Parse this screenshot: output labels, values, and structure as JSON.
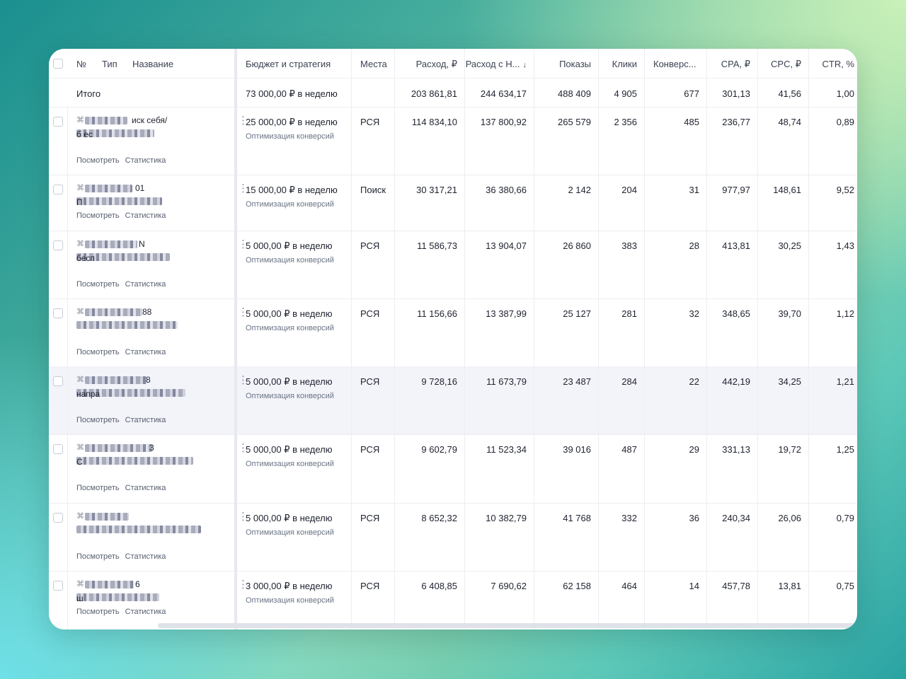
{
  "header": {
    "num": "№",
    "type": "Тип",
    "name": "Название",
    "budget": "Бюджет и стратегия",
    "places": "Места",
    "spend": "Расход, ₽",
    "spend_vat": "Расход с Н...",
    "sort_arrow": "↓",
    "impressions": "Показы",
    "clicks": "Клики",
    "conversions": "Конверс...",
    "cpa": "CPA, ₽",
    "cpc": "CPC, ₽",
    "ctr": "CTR, %"
  },
  "total": {
    "label": "Итого",
    "budget": "73 000,00 ₽ в неделю",
    "spend": "203 861,81",
    "spend_vat": "244 634,17",
    "impressions": "488 409",
    "clicks": "4 905",
    "conversions": "677",
    "cpa": "301,13",
    "cpc": "41,56",
    "ctr": "1,00"
  },
  "links": {
    "view": "Посмотреть",
    "stats": "Статистика"
  },
  "rows": [
    {
      "frag": "иск себя/",
      "frag2": "б  ес",
      "budget": "25 000,00 ₽ в неделю",
      "strategy": "Оптимизация конверсий",
      "places": "РСЯ",
      "spend": "114 834,10",
      "spend_vat": "137 800,92",
      "impressions": "265 579",
      "clicks": "2 356",
      "conversions": "485",
      "cpa": "236,77",
      "cpc": "48,74",
      "ctr": "0,89"
    },
    {
      "frag": "01",
      "frag2": "П",
      "budget": "15 000,00 ₽ в неделю",
      "strategy": "Оптимизация конверсий",
      "places": "Поиск",
      "spend": "30 317,21",
      "spend_vat": "36 380,66",
      "impressions": "2 142",
      "clicks": "204",
      "conversions": "31",
      "cpa": "977,97",
      "cpc": "148,61",
      "ctr": "9,52"
    },
    {
      "frag": "N",
      "frag2": "бесп",
      "budget": "5 000,00 ₽ в неделю",
      "strategy": "Оптимизация конверсий",
      "places": "РСЯ",
      "spend": "11 586,73",
      "spend_vat": "13 904,07",
      "impressions": "26 860",
      "clicks": "383",
      "conversions": "28",
      "cpa": "413,81",
      "cpc": "30,25",
      "ctr": "1,43"
    },
    {
      "frag": "88",
      "frag2": "",
      "budget": "5 000,00 ₽ в неделю",
      "strategy": "Оптимизация конверсий",
      "places": "РСЯ",
      "spend": "11 156,66",
      "spend_vat": "13 387,99",
      "impressions": "25 127",
      "clicks": "281",
      "conversions": "32",
      "cpa": "348,65",
      "cpc": "39,70",
      "ctr": "1,12"
    },
    {
      "frag": "8",
      "frag2": "напра",
      "budget": "5 000,00 ₽ в неделю",
      "strategy": "Оптимизация конверсий",
      "places": "РСЯ",
      "spend": "9 728,16",
      "spend_vat": "11 673,79",
      "impressions": "23 487",
      "clicks": "284",
      "conversions": "22",
      "cpa": "442,19",
      "cpc": "34,25",
      "ctr": "1,21"
    },
    {
      "frag": "3",
      "frag2": "С",
      "budget": "5 000,00 ₽ в неделю",
      "strategy": "Оптимизация конверсий",
      "places": "РСЯ",
      "spend": "9 602,79",
      "spend_vat": "11 523,34",
      "impressions": "39 016",
      "clicks": "487",
      "conversions": "29",
      "cpa": "331,13",
      "cpc": "19,72",
      "ctr": "1,25"
    },
    {
      "frag": "",
      "frag2": "",
      "budget": "5 000,00 ₽ в неделю",
      "strategy": "Оптимизация конверсий",
      "places": "РСЯ",
      "spend": "8 652,32",
      "spend_vat": "10 382,79",
      "impressions": "41 768",
      "clicks": "332",
      "conversions": "36",
      "cpa": "240,34",
      "cpc": "26,06",
      "ctr": "0,79"
    },
    {
      "frag": "6",
      "frag2": "ш",
      "budget": "3 000,00 ₽ в неделю",
      "strategy": "Оптимизация конверсий",
      "places": "РСЯ",
      "spend": "6 408,85",
      "spend_vat": "7 690,62",
      "impressions": "62 158",
      "clicks": "464",
      "conversions": "14",
      "cpa": "457,78",
      "cpc": "13,81",
      "ctr": "0,75"
    }
  ]
}
